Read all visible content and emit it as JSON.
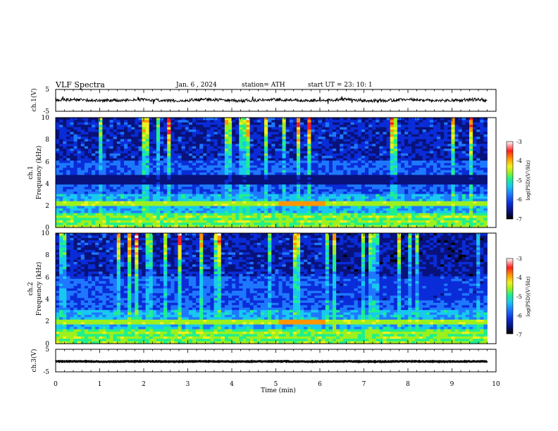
{
  "header": {
    "title": "VLF  Spectra",
    "date": "Jan.  6   , 2024",
    "station": "station= ATH",
    "start": "start  UT  =    23: 10: 1"
  },
  "chart_data": [
    {
      "id": "ch1-waveform",
      "type": "line",
      "ylabel": "ch.1(V)",
      "ylim": [
        -5,
        5
      ],
      "yticks": [
        "5",
        "-5"
      ],
      "xlim": [
        0,
        10
      ],
      "x_end": 9.8,
      "color": "#000000",
      "level": 0.1,
      "noise": 0.7
    },
    {
      "id": "ch1-spectrogram",
      "type": "heatmap",
      "ylabel": "Frequency (kHz)",
      "channel_label": "ch.1",
      "ylim": [
        0,
        10
      ],
      "yticks": [
        "0",
        "2",
        "4",
        "6",
        "8",
        "10"
      ],
      "xlim": [
        0,
        10
      ],
      "x_end": 9.8,
      "colorbar": {
        "label": "log(PSD)(V²/Hz)",
        "range": [
          -7,
          -3
        ],
        "ticks": [
          "-3",
          "-4",
          "-5",
          "-6",
          "-7"
        ]
      },
      "features": {
        "dark_band_khz": [
          4,
          4.8
        ],
        "persistent_line_khz": 2.2,
        "intense_segment": {
          "x": [
            5.1,
            6.1
          ],
          "khz": 2.2
        }
      }
    },
    {
      "id": "ch2-spectrogram",
      "type": "heatmap",
      "ylabel": "Frequency (kHz)",
      "channel_label": "ch.2",
      "ylim": [
        0,
        10
      ],
      "yticks": [
        "0",
        "2",
        "4",
        "6",
        "8",
        "10"
      ],
      "xlim": [
        0,
        10
      ],
      "x_end": 9.8,
      "colorbar": {
        "label": "log(PSD)(V²/Hz)",
        "range": [
          -7,
          -3
        ],
        "ticks": [
          "-3",
          "-4",
          "-5",
          "-6",
          "-7"
        ]
      },
      "features": {
        "persistent_line_khz": 2.0,
        "intense_segment": {
          "x": [
            5.1,
            6.1
          ],
          "khz": 2.0
        }
      }
    },
    {
      "id": "ch3-waveform",
      "type": "line",
      "ylabel": "ch.3(V)",
      "ylim": [
        -5,
        5
      ],
      "yticks": [
        "5",
        "-5"
      ],
      "xlim": [
        0,
        10
      ],
      "x_end": 9.8,
      "color": "#000000",
      "level": -0.4,
      "noise": 0.15
    }
  ],
  "xaxis": {
    "label": "Time  (min)",
    "ticks": [
      "0",
      "1",
      "2",
      "3",
      "4",
      "5",
      "6",
      "7",
      "8",
      "9",
      "10"
    ]
  },
  "colormap": [
    "#000000",
    "#08127a",
    "#0a2cd8",
    "#1e78ff",
    "#19c8f0",
    "#1ef08c",
    "#9cf01e",
    "#f0f01e",
    "#ff9600",
    "#ff1e1e",
    "#ffffff"
  ]
}
